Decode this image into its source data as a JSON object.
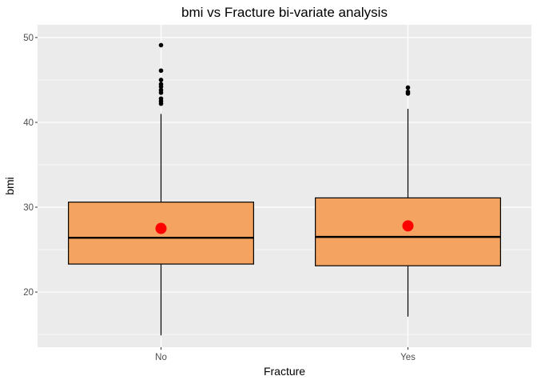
{
  "chart_data": {
    "type": "boxplot",
    "title": "bmi vs Fracture bi-variate analysis",
    "xlabel": "Fracture",
    "ylabel": "bmi",
    "categories": [
      "No",
      "Yes"
    ],
    "ylim": [
      13.5,
      51.5
    ],
    "yticks": [
      20,
      30,
      40,
      50
    ],
    "grid": true,
    "boxes": [
      {
        "category": "No",
        "min": 14.9,
        "q1": 23.3,
        "median": 26.4,
        "q3": 30.6,
        "max": 41.0,
        "mean": 27.5,
        "outliers": [
          42.2,
          42.5,
          42.8,
          43.5,
          43.8,
          44.2,
          44.5,
          45.0,
          46.1,
          49.1
        ]
      },
      {
        "category": "Yes",
        "min": 17.1,
        "q1": 23.1,
        "median": 26.5,
        "q3": 31.1,
        "max": 41.6,
        "mean": 27.8,
        "outliers": [
          43.4,
          43.6,
          44.1
        ]
      }
    ],
    "colors": {
      "panel_bg": "#ebebeb",
      "grid": "#ffffff",
      "box_fill": "#f4a460",
      "box_outline": "#000000",
      "mean_point": "#ff0000",
      "outlier": "#000000"
    }
  }
}
